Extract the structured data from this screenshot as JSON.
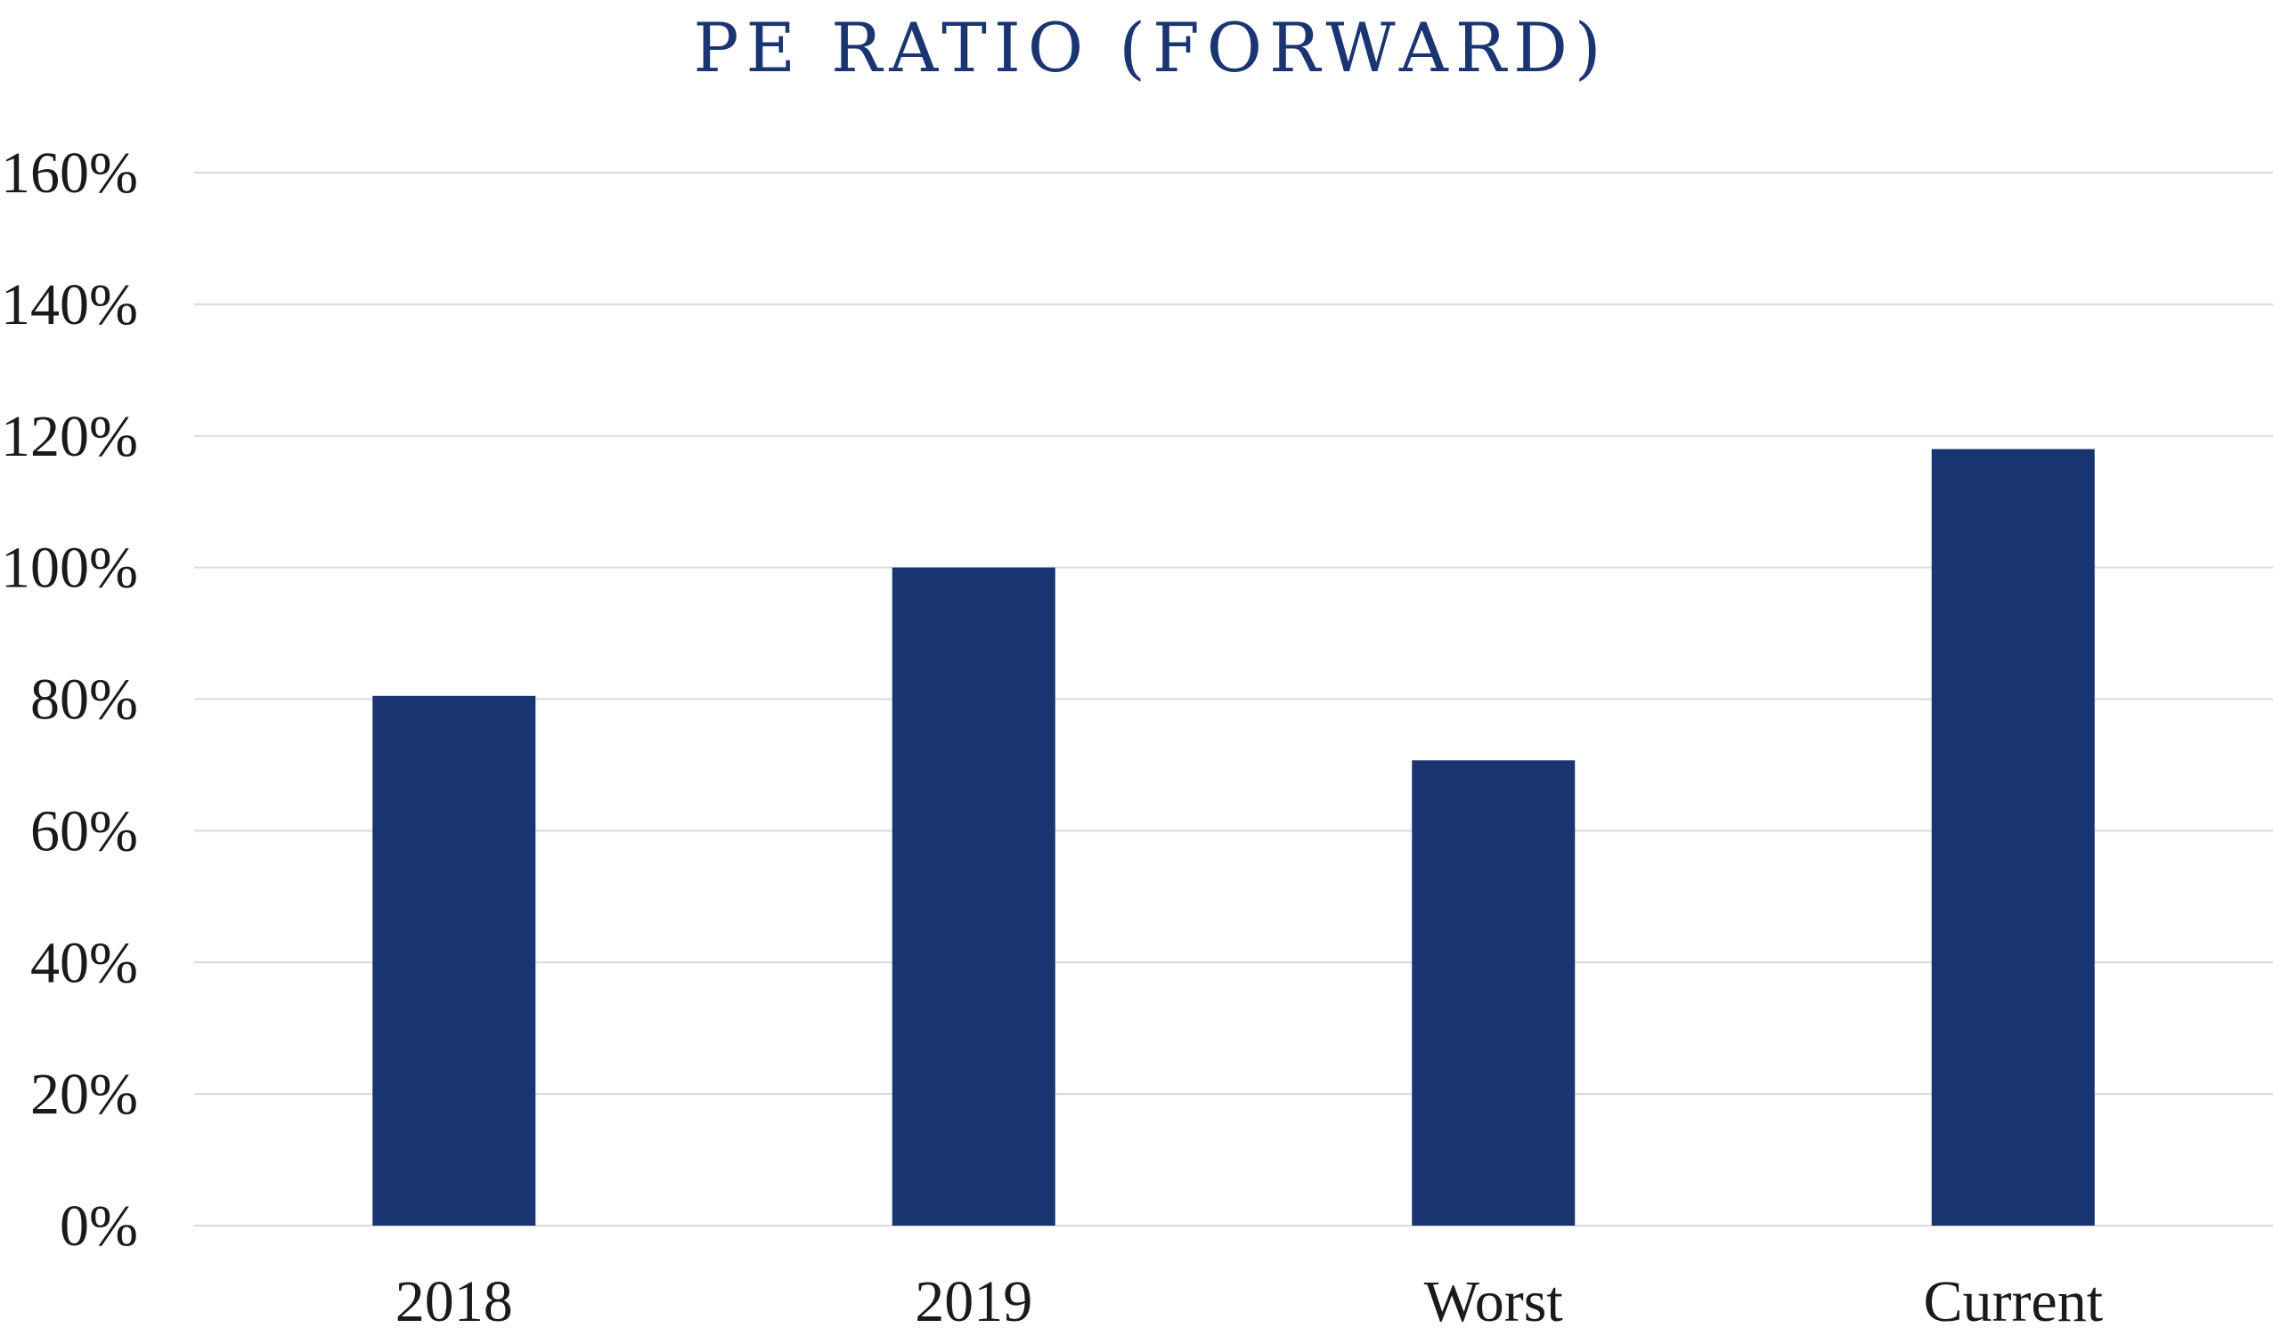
{
  "chart_data": {
    "type": "bar",
    "title": "PE RATIO (FORWARD)",
    "xlabel": "",
    "ylabel": "",
    "categories": [
      "2018",
      "2019",
      "Worst",
      "Current"
    ],
    "series": [
      {
        "values": [
          80.5,
          100,
          70.7,
          118
        ]
      }
    ],
    "y_ticks": [
      "0%",
      "20%",
      "40%",
      "60%",
      "80%",
      "100%",
      "120%",
      "140%",
      "160%"
    ],
    "ylim": [
      0,
      160
    ],
    "grid": true,
    "legend": "none",
    "colors": {
      "bar": "#183572",
      "title": "#1a3573",
      "grid": "#d9d9d9"
    }
  }
}
